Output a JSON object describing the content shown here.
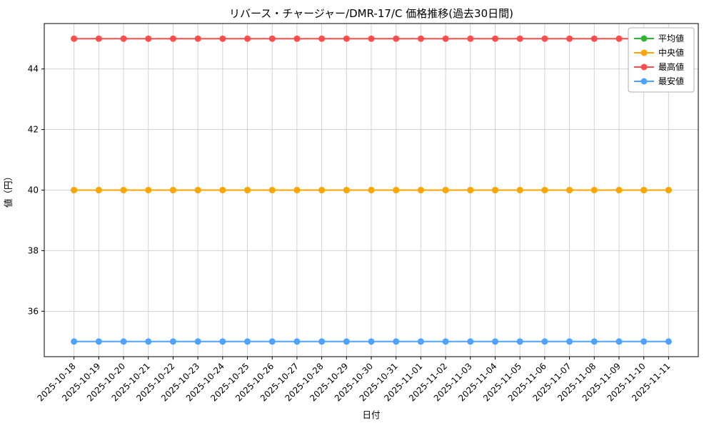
{
  "chart_data": {
    "type": "line",
    "title": "リバース・チャージャー/DMR-17/C 価格推移(過去30日間)",
    "xlabel": "日付",
    "ylabel": "値（円）",
    "grid": true,
    "legend_position": "upper right",
    "ylim": [
      34.5,
      45.5
    ],
    "yticks": [
      36,
      38,
      40,
      42,
      44
    ],
    "categories": [
      "2025-10-18",
      "2025-10-19",
      "2025-10-20",
      "2025-10-21",
      "2025-10-22",
      "2025-10-23",
      "2025-10-24",
      "2025-10-25",
      "2025-10-26",
      "2025-10-27",
      "2025-10-28",
      "2025-10-29",
      "2025-10-30",
      "2025-10-31",
      "2025-11-01",
      "2025-11-02",
      "2025-11-03",
      "2025-11-04",
      "2025-11-05",
      "2025-11-06",
      "2025-11-07",
      "2025-11-08",
      "2025-11-09",
      "2025-11-10",
      "2025-11-11"
    ],
    "series": [
      {
        "key": "average",
        "name": "平均値",
        "color": "#33b333",
        "values": [
          40,
          40,
          40,
          40,
          40,
          40,
          40,
          40,
          40,
          40,
          40,
          40,
          40,
          40,
          40,
          40,
          40,
          40,
          40,
          40,
          40,
          40,
          40,
          40,
          40
        ]
      },
      {
        "key": "median",
        "name": "中央値",
        "color": "#ffa500",
        "values": [
          40,
          40,
          40,
          40,
          40,
          40,
          40,
          40,
          40,
          40,
          40,
          40,
          40,
          40,
          40,
          40,
          40,
          40,
          40,
          40,
          40,
          40,
          40,
          40,
          40
        ]
      },
      {
        "key": "highest",
        "name": "最高値",
        "color": "#ff4d4d",
        "values": [
          45,
          45,
          45,
          45,
          45,
          45,
          45,
          45,
          45,
          45,
          45,
          45,
          45,
          45,
          45,
          45,
          45,
          45,
          45,
          45,
          45,
          45,
          45,
          45,
          45
        ]
      },
      {
        "key": "lowest",
        "name": "最安値",
        "color": "#4da3ff",
        "values": [
          35,
          35,
          35,
          35,
          35,
          35,
          35,
          35,
          35,
          35,
          35,
          35,
          35,
          35,
          35,
          35,
          35,
          35,
          35,
          35,
          35,
          35,
          35,
          35,
          35
        ]
      }
    ]
  }
}
